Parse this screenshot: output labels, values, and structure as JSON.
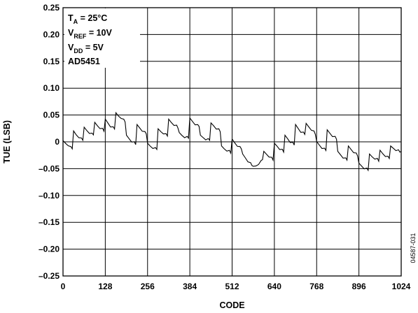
{
  "chart_data": {
    "type": "line",
    "title": "",
    "xlabel": "CODE",
    "ylabel": "TUE (LSB)",
    "xlim": [
      0,
      1024
    ],
    "ylim": [
      -0.25,
      0.25
    ],
    "grid": true,
    "xticks": [
      0,
      128,
      256,
      384,
      512,
      640,
      768,
      896,
      1024
    ],
    "xtick_labels": [
      "0",
      "128",
      "256",
      "384",
      "512",
      "640",
      "768",
      "896",
      "1024"
    ],
    "yticks": [
      0.25,
      0.2,
      0.15,
      0.1,
      0.05,
      0,
      -0.05,
      -0.1,
      -0.15,
      -0.2,
      -0.25
    ],
    "ytick_labels": [
      "0.25",
      "0.20",
      "0.15",
      "0.10",
      "0.05",
      "0",
      "–0.05",
      "–0.10",
      "–0.15",
      "–0.20",
      "–0.25"
    ],
    "annotations": {
      "line1": {
        "main": "T",
        "sub": "A",
        "rest": " = 25°C"
      },
      "line2": {
        "main": "V",
        "sub": "REF",
        "rest": " = 10V"
      },
      "line3": {
        "main": "V",
        "sub": "DD",
        "rest": " = 5V"
      },
      "line4": {
        "main": "AD5451",
        "sub": "",
        "rest": ""
      }
    },
    "figure_id": "04587-031",
    "series": [
      {
        "x": [
          0,
          8,
          16,
          24,
          28,
          32,
          40,
          48,
          56,
          60,
          64,
          72,
          80,
          88,
          92,
          96,
          104,
          112,
          120,
          124,
          128,
          136,
          144,
          152,
          156,
          160,
          168,
          176,
          184,
          188,
          192,
          200,
          208,
          216,
          220,
          224,
          232,
          240,
          248,
          252,
          256,
          264,
          272,
          280,
          284,
          288,
          296,
          304,
          312,
          316,
          320,
          328,
          336,
          344,
          348,
          352,
          360,
          368,
          376,
          380,
          384,
          392,
          400,
          408,
          412,
          416,
          424,
          432,
          440,
          444,
          448,
          456,
          464,
          472,
          476,
          480,
          488,
          496,
          504,
          508,
          512,
          520,
          528,
          536,
          540,
          544,
          552,
          560,
          568,
          572,
          576,
          584,
          592,
          600,
          604,
          608,
          616,
          624,
          632,
          636,
          640,
          648,
          656,
          664,
          668,
          672,
          680,
          688,
          696,
          700,
          704,
          712,
          720,
          728,
          732,
          736,
          744,
          752,
          760,
          764,
          768,
          776,
          784,
          792,
          796,
          800,
          808,
          816,
          824,
          828,
          832,
          840,
          848,
          856,
          860,
          864,
          872,
          880,
          888,
          892,
          896,
          904,
          912,
          920,
          924,
          928,
          936,
          944,
          952,
          956,
          960,
          968,
          976,
          984,
          988,
          992,
          1000,
          1008,
          1016,
          1020,
          1024
        ],
        "y": [
          0,
          -0.003,
          -0.005,
          -0.01,
          -0.012,
          0.018,
          0.013,
          0.01,
          0.006,
          0.004,
          0.025,
          0.021,
          0.018,
          0.015,
          0.014,
          0.034,
          0.03,
          0.027,
          0.024,
          0.021,
          0.04,
          0.035,
          0.03,
          0.027,
          0.025,
          0.052,
          0.048,
          0.046,
          0.041,
          0.038,
          0.01,
          0.006,
          0.002,
          -0.001,
          -0.004,
          0.03,
          0.026,
          0.022,
          0.018,
          0.016,
          -0.005,
          -0.008,
          -0.01,
          -0.012,
          -0.013,
          0.022,
          0.019,
          0.017,
          0.014,
          0.012,
          0.04,
          0.036,
          0.033,
          0.03,
          0.027,
          0.015,
          0.012,
          0.01,
          0.009,
          0.008,
          0.042,
          0.038,
          0.034,
          0.031,
          0.03,
          0.01,
          0.008,
          0.006,
          0.005,
          0.004,
          0.033,
          0.03,
          0.026,
          0.023,
          0.02,
          -0.01,
          -0.013,
          -0.015,
          -0.017,
          -0.02,
          0.003,
          -0.002,
          -0.006,
          -0.01,
          -0.012,
          -0.025,
          -0.03,
          -0.035,
          -0.04,
          -0.043,
          -0.048,
          -0.045,
          -0.04,
          -0.036,
          -0.032,
          -0.02,
          -0.023,
          -0.026,
          -0.03,
          -0.033,
          -0.005,
          -0.008,
          -0.012,
          -0.015,
          -0.018,
          0.01,
          0.006,
          0.001,
          -0.002,
          -0.005,
          0.03,
          0.025,
          0.02,
          0.017,
          0.015,
          0.032,
          0.028,
          0.024,
          0.019,
          0.015,
          -0.002,
          -0.006,
          -0.01,
          -0.013,
          -0.015,
          0.02,
          0.016,
          0.012,
          0.009,
          0.006,
          -0.02,
          -0.024,
          -0.028,
          -0.031,
          -0.033,
          -0.01,
          -0.014,
          -0.018,
          -0.022,
          -0.025,
          -0.042,
          -0.045,
          -0.048,
          -0.05,
          -0.052,
          -0.025,
          -0.028,
          -0.03,
          -0.032,
          -0.035,
          -0.018,
          -0.022,
          -0.025,
          -0.028,
          -0.03,
          -0.01,
          -0.012,
          -0.014,
          -0.016,
          -0.018,
          -0.02
        ]
      }
    ]
  }
}
